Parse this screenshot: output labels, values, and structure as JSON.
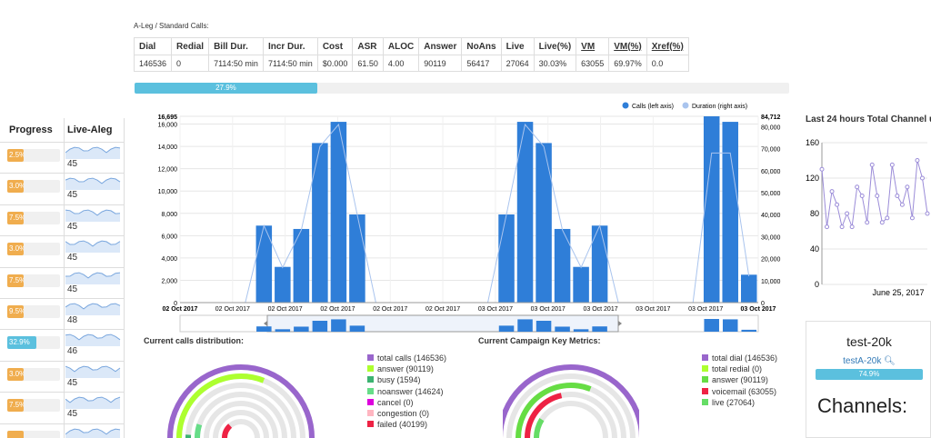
{
  "left": {
    "headers": [
      "Progress",
      "Live-Aleg"
    ],
    "rows": [
      {
        "pct": "2.5%",
        "color": "#f0ad4e",
        "val": "45"
      },
      {
        "pct": "3.0%",
        "color": "#f0ad4e",
        "val": "45"
      },
      {
        "pct": "7.5%",
        "color": "#f0ad4e",
        "val": "45"
      },
      {
        "pct": "3.0%",
        "color": "#f0ad4e",
        "val": "45"
      },
      {
        "pct": "7.5%",
        "color": "#f0ad4e",
        "val": "45"
      },
      {
        "pct": "9.5%",
        "color": "#f0ad4e",
        "val": "48"
      },
      {
        "pct": "32.9%",
        "color": "#5bc0de",
        "val": "46"
      },
      {
        "pct": "3.0%",
        "color": "#f0ad4e",
        "val": "45"
      },
      {
        "pct": "7.5%",
        "color": "#f0ad4e",
        "val": "45"
      },
      {
        "pct": "",
        "color": "#f0ad4e",
        "val": ""
      }
    ]
  },
  "section_title": "A-Leg / Standard Calls:",
  "table": {
    "headers": [
      "Dial",
      "Redial",
      "Bill Dur.",
      "Incr Dur.",
      "Cost",
      "ASR",
      "ALOC",
      "Answer",
      "NoAns",
      "Live",
      "Live(%)",
      "VM",
      "VM(%)",
      "Xref(%)"
    ],
    "row": [
      "146536",
      "0",
      "7114:50 min",
      "7114:50 min",
      "$0.000",
      "61.50",
      "4.00",
      "90119",
      "56417",
      "27064",
      "30.03%",
      "63055",
      "69.97%",
      "0.0"
    ]
  },
  "overall_progress": {
    "label": "27.9%",
    "value": 27.9
  },
  "legend": {
    "calls": "Calls (left axis)",
    "duration": "Duration (right axis)"
  },
  "chart_data": {
    "type": "bar",
    "series": [
      {
        "name": "Calls (left axis)",
        "values": [
          0,
          0,
          0,
          0,
          6900,
          3200,
          6600,
          14300,
          16200,
          7900,
          0,
          0,
          0,
          0,
          0,
          0,
          0,
          7900,
          16200,
          14300,
          6600,
          3200,
          6900,
          0,
          0,
          0,
          0,
          0,
          16695,
          16200,
          2500
        ]
      },
      {
        "name": "Duration (right axis)",
        "values": [
          0,
          0,
          0,
          0,
          35000,
          16000,
          33000,
          71000,
          81000,
          40000,
          0,
          0,
          0,
          0,
          0,
          0,
          0,
          40000,
          81000,
          71000,
          33000,
          16000,
          35000,
          0,
          0,
          0,
          0,
          0,
          68000,
          68000,
          12000
        ]
      }
    ],
    "y_ticks": [
      "0",
      "2,000",
      "4,000",
      "6,000",
      "8,000",
      "10,000",
      "12,000",
      "14,000",
      "16,000",
      "16,695"
    ],
    "y2_ticks": [
      "0",
      "10,000",
      "20,000",
      "30,000",
      "40,000",
      "50,000",
      "60,000",
      "70,000",
      "80,000",
      "84,712"
    ],
    "x_labels": [
      "02 Oct 2017",
      "02 Oct 2017",
      "02 Oct 2017",
      "02 Oct 2017",
      "02 Oct 2017",
      "02 Oct 2017",
      "03 Oct 2017",
      "03 Oct 2017",
      "03 Oct 2017",
      "03 Oct 2017",
      "03 Oct 2017",
      "03 Oct 2017"
    ],
    "ylim": [
      0,
      16695
    ],
    "y2lim": [
      0,
      84712
    ]
  },
  "navigator": {
    "labels": [
      "02 Oct 2017",
      "02 Oct 2017",
      "02 Oct 2017",
      "02 Oct 2017",
      "03 Oct 2017",
      "03 Oct 2017",
      "03 Oct 2017",
      "04 Oct 2017"
    ]
  },
  "dist": {
    "title": "Current calls distribution:",
    "items": [
      {
        "label": "total calls (146536)",
        "color": "#9966cc"
      },
      {
        "label": "answer (90119)",
        "color": "#adff2f"
      },
      {
        "label": "busy (1594)",
        "color": "#3cb371"
      },
      {
        "label": "noanswer (14624)",
        "color": "#66dd88"
      },
      {
        "label": "cancel (0)",
        "color": "#dd00dd"
      },
      {
        "label": "congestion (0)",
        "color": "#ffb6c1"
      },
      {
        "label": "failed (40199)",
        "color": "#ee2244"
      }
    ]
  },
  "kpi": {
    "title": "Current Campaign Key Metrics:",
    "items": [
      {
        "label": "total dial (146536)",
        "color": "#9966cc"
      },
      {
        "label": "total redial (0)",
        "color": "#adff2f"
      },
      {
        "label": "answer (90119)",
        "color": "#66dd44"
      },
      {
        "label": "voicemail (63055)",
        "color": "#ee2244"
      },
      {
        "label": "live (27064)",
        "color": "#66dd66"
      }
    ]
  },
  "right": {
    "title": "Last 24 hours Total Channel u",
    "y_ticks": [
      "160",
      "120",
      "80",
      "40",
      "0"
    ],
    "x_label": "June 25, 2017",
    "campaign": "test-20k",
    "link": "testA-20k",
    "progress": "74.9%",
    "channels": "Channels:",
    "line_values": [
      130,
      65,
      105,
      90,
      65,
      80,
      65,
      110,
      100,
      70,
      135,
      100,
      70,
      75,
      135,
      100,
      90,
      110,
      75,
      140,
      120,
      80
    ]
  }
}
